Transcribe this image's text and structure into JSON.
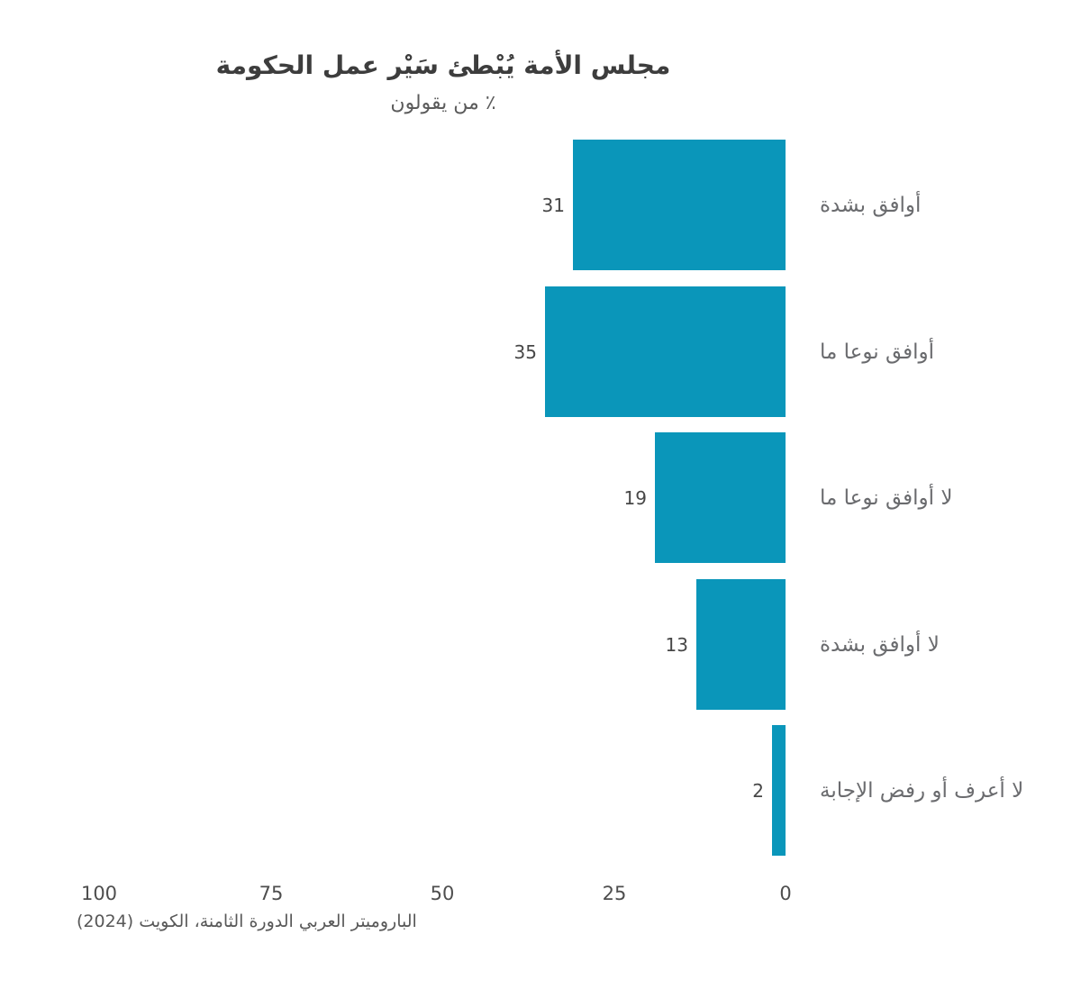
{
  "chart_data": {
    "type": "bar",
    "orientation": "horizontal_rtl",
    "title": "مجلس الأمة يُبْطئ سَيْر عمل الحكومة",
    "subtitle": "٪ من يقولون",
    "categories": [
      "أوافق بشدة",
      "أوافق نوعا ما",
      "لا أوافق نوعا ما",
      "لا أوافق بشدة",
      "لا أعرف أو رفض الإجابة"
    ],
    "values": [
      31,
      35,
      19,
      13,
      2
    ],
    "x_ticks": [
      100,
      75,
      50,
      25,
      0
    ],
    "xlim": [
      0,
      100
    ],
    "x_axis_reversed": true,
    "grid": false,
    "legend": "none",
    "bar_color": "#0a96ba",
    "source": "الباروميتر العربي الدورة الثامنة، الكويت (2024)"
  }
}
